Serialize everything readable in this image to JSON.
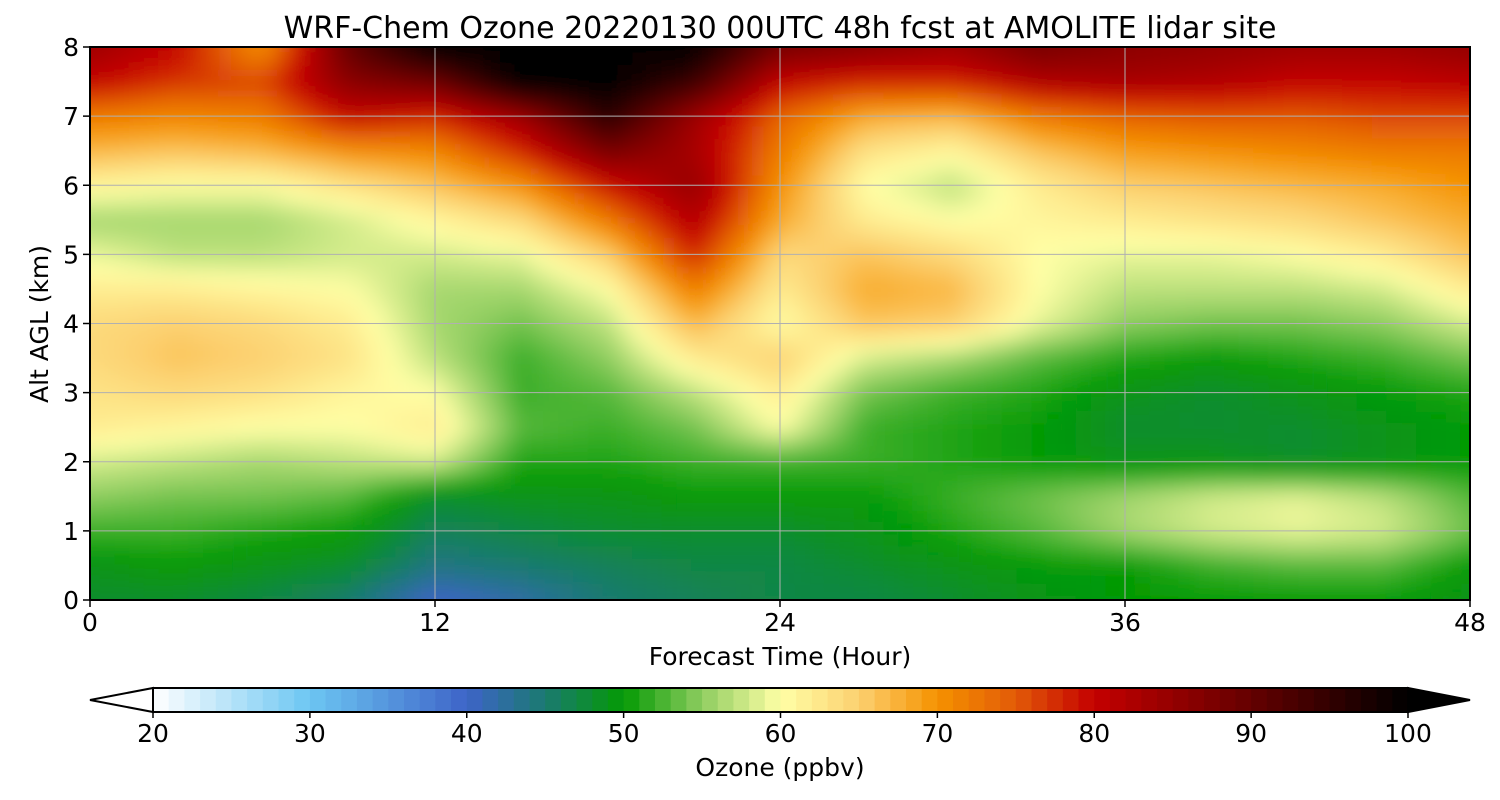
{
  "chart_data": {
    "type": "heatmap",
    "title": "WRF-Chem Ozone  20220130 00UTC 48h fcst at AMOLITE lidar site",
    "xlabel": "Forecast Time (Hour)",
    "ylabel": "Alt AGL (km)",
    "xlim": [
      0,
      48
    ],
    "ylim": [
      0,
      8
    ],
    "xticks": [
      "0",
      "12",
      "24",
      "36",
      "48"
    ],
    "yticks": [
      "0",
      "1",
      "2",
      "3",
      "4",
      "5",
      "6",
      "7",
      "8"
    ],
    "grid": true,
    "x": [
      0,
      3,
      6,
      9,
      12,
      15,
      18,
      21,
      24,
      27,
      30,
      33,
      36,
      39,
      42,
      45,
      48
    ],
    "y": [
      0,
      0.5,
      1,
      1.5,
      2,
      2.5,
      3,
      3.5,
      4,
      4.5,
      5,
      5.5,
      6,
      6.5,
      7,
      7.5,
      8
    ],
    "z": [
      [
        48,
        48,
        47,
        45,
        40,
        42,
        45,
        46,
        47,
        47,
        48,
        49,
        50,
        50,
        50,
        50,
        49
      ],
      [
        49,
        50,
        49,
        48,
        44,
        45,
        46,
        47,
        47,
        48,
        49,
        50,
        50,
        52,
        53,
        53,
        50
      ],
      [
        52,
        52,
        51,
        50,
        46,
        47,
        48,
        48,
        48,
        49,
        51,
        53,
        56,
        58,
        59,
        58,
        54
      ],
      [
        55,
        54,
        54,
        53,
        48,
        49,
        49,
        50,
        50,
        50,
        52,
        54,
        56,
        58,
        59,
        57,
        53
      ],
      [
        58,
        57,
        56,
        57,
        58,
        51,
        51,
        52,
        52,
        52,
        51,
        50,
        49,
        49,
        48,
        49,
        50
      ],
      [
        62,
        61,
        60,
        60,
        62,
        53,
        52,
        54,
        60,
        52,
        51,
        50,
        48,
        48,
        48,
        49,
        50
      ],
      [
        63,
        64,
        63,
        61,
        60,
        52,
        53,
        57,
        62,
        54,
        52,
        51,
        49,
        48,
        49,
        50,
        51
      ],
      [
        64,
        66,
        65,
        63,
        57,
        52,
        55,
        62,
        65,
        58,
        56,
        53,
        51,
        50,
        51,
        52,
        54
      ],
      [
        64,
        65,
        64,
        62,
        56,
        54,
        57,
        67,
        60,
        66,
        65,
        59,
        55,
        54,
        54,
        55,
        58
      ],
      [
        62,
        62,
        61,
        60,
        56,
        56,
        60,
        72,
        62,
        68,
        67,
        60,
        57,
        57,
        57,
        58,
        62
      ],
      [
        59,
        57,
        57,
        58,
        58,
        59,
        65,
        78,
        64,
        66,
        64,
        60,
        59,
        59,
        60,
        62,
        66
      ],
      [
        56,
        56,
        56,
        58,
        61,
        64,
        72,
        82,
        68,
        62,
        60,
        61,
        62,
        63,
        64,
        66,
        68
      ],
      [
        61,
        60,
        60,
        63,
        66,
        70,
        79,
        85,
        70,
        60,
        57,
        62,
        65,
        66,
        67,
        68,
        70
      ],
      [
        67,
        66,
        67,
        70,
        71,
        78,
        88,
        83,
        72,
        63,
        61,
        66,
        69,
        70,
        71,
        72,
        72
      ],
      [
        72,
        71,
        72,
        80,
        78,
        84,
        96,
        84,
        74,
        68,
        67,
        72,
        74,
        75,
        75,
        76,
        76
      ],
      [
        80,
        77,
        76,
        86,
        89,
        100,
        100,
        94,
        80,
        78,
        78,
        82,
        83,
        82,
        80,
        80,
        81
      ],
      [
        84,
        80,
        70,
        90,
        100,
        100,
        100,
        100,
        88,
        86,
        84,
        88,
        86,
        85,
        84,
        84,
        85
      ]
    ],
    "colorbar": {
      "label": "Ozone  (ppbv)",
      "min": 20,
      "max": 100,
      "step": 1,
      "ticks": [
        "20",
        "30",
        "40",
        "50",
        "60",
        "70",
        "80",
        "90",
        "100"
      ],
      "extend": "both",
      "stops": [
        [
          20,
          "#ffffff"
        ],
        [
          30,
          "#6cc6f2"
        ],
        [
          40,
          "#3e64c8"
        ],
        [
          45,
          "#1a7a70"
        ],
        [
          50,
          "#049a04"
        ],
        [
          55,
          "#8fcd60"
        ],
        [
          60,
          "#ffffa6"
        ],
        [
          65,
          "#fcd070"
        ],
        [
          70,
          "#f59200"
        ],
        [
          75,
          "#e25a08"
        ],
        [
          80,
          "#c40000"
        ],
        [
          90,
          "#640000"
        ],
        [
          100,
          "#000000"
        ]
      ]
    }
  }
}
